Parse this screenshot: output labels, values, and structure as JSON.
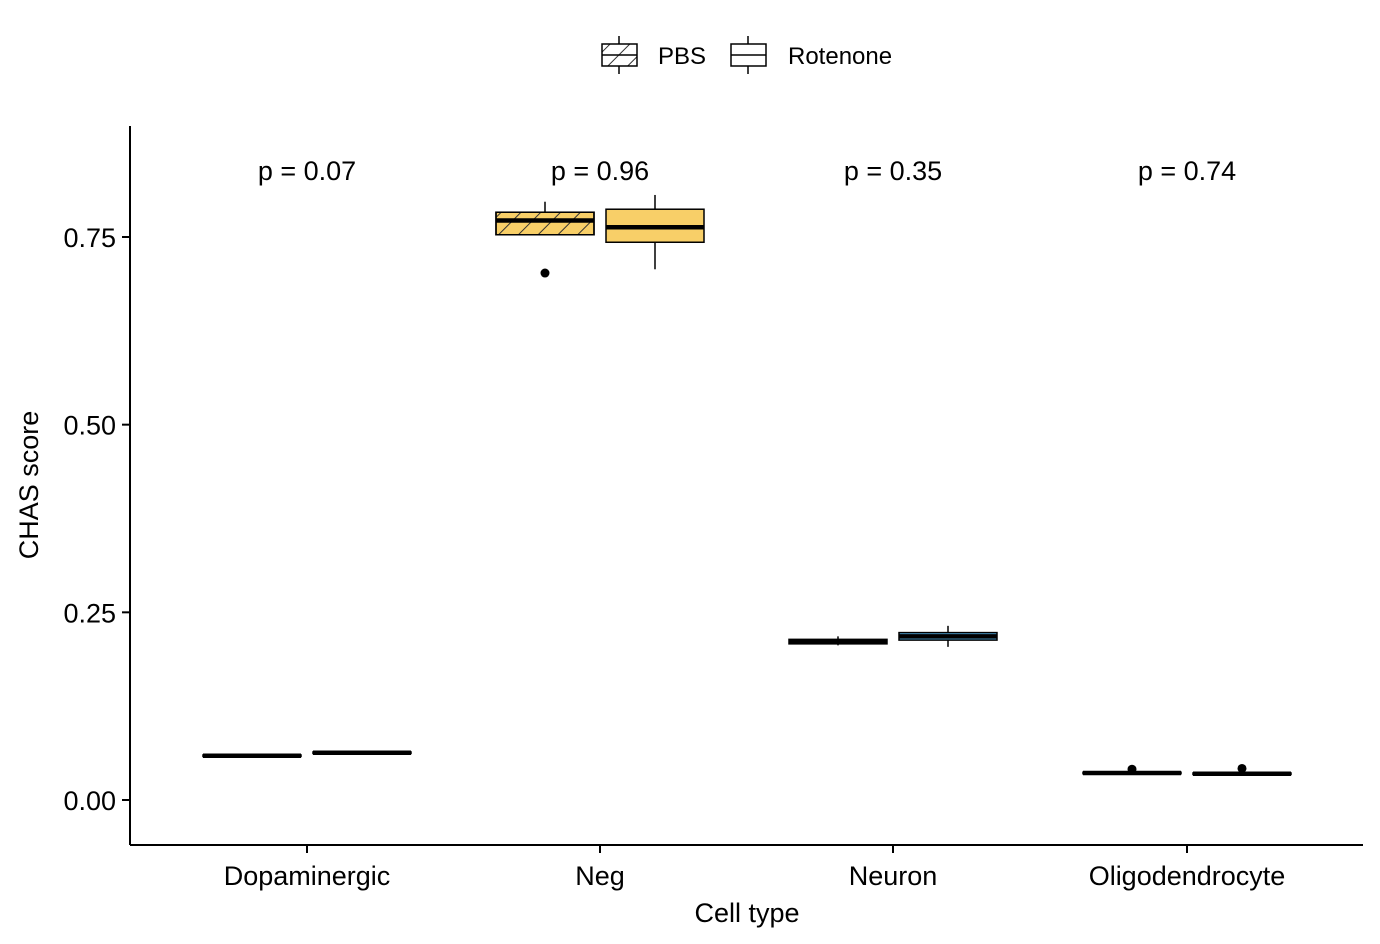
{
  "chart_data": {
    "type": "boxplot",
    "xlabel": "Cell type",
    "ylabel": "CHAS score",
    "categories": [
      "Dopaminergic",
      "Neg",
      "Neuron",
      "Oligodendrocyte"
    ],
    "ylim": [
      -0.06,
      0.89
    ],
    "yticks": [
      0.0,
      0.25,
      0.5,
      0.75
    ],
    "ytick_labels": [
      "0.00",
      "0.25",
      "0.50",
      "0.75"
    ],
    "legend": {
      "position": "top",
      "entries": [
        {
          "label": "PBS",
          "pattern": "hatched"
        },
        {
          "label": "Rotenone",
          "pattern": "none"
        }
      ]
    },
    "groups": [
      "PBS",
      "Rotenone"
    ],
    "p_values": [
      "p = 0.07",
      "p = 0.96",
      "p = 0.35",
      "p = 0.74"
    ],
    "boxes": [
      {
        "category": "Dopaminergic",
        "group": "PBS",
        "fill": "#6B2FA0",
        "whisker_low": 0.058,
        "q1": 0.058,
        "median": 0.059,
        "q3": 0.06,
        "whisker_high": 0.06,
        "outliers": []
      },
      {
        "category": "Dopaminergic",
        "group": "Rotenone",
        "fill": "#6B2FA0",
        "whisker_low": 0.062,
        "q1": 0.062,
        "median": 0.063,
        "q3": 0.064,
        "whisker_high": 0.064,
        "outliers": []
      },
      {
        "category": "Neg",
        "group": "PBS",
        "fill": "#F8CF68",
        "whisker_low": 0.752,
        "q1": 0.753,
        "median": 0.772,
        "q3": 0.783,
        "whisker_high": 0.797,
        "outliers": [
          0.702
        ]
      },
      {
        "category": "Neg",
        "group": "Rotenone",
        "fill": "#F8CF68",
        "whisker_low": 0.707,
        "q1": 0.743,
        "median": 0.763,
        "q3": 0.787,
        "whisker_high": 0.806,
        "outliers": []
      },
      {
        "category": "Neuron",
        "group": "PBS",
        "fill": "#56B4E9",
        "whisker_low": 0.206,
        "q1": 0.208,
        "median": 0.211,
        "q3": 0.214,
        "whisker_high": 0.218,
        "outliers": []
      },
      {
        "category": "Neuron",
        "group": "Rotenone",
        "fill": "#56B4E9",
        "whisker_low": 0.204,
        "q1": 0.213,
        "median": 0.218,
        "q3": 0.223,
        "whisker_high": 0.232,
        "outliers": []
      },
      {
        "category": "Oligodendrocyte",
        "group": "PBS",
        "fill": "#6B2FA0",
        "whisker_low": 0.035,
        "q1": 0.035,
        "median": 0.036,
        "q3": 0.037,
        "whisker_high": 0.037,
        "outliers": [
          0.041
        ]
      },
      {
        "category": "Oligodendrocyte",
        "group": "Rotenone",
        "fill": "#6B2FA0",
        "whisker_low": 0.034,
        "q1": 0.034,
        "median": 0.035,
        "q3": 0.036,
        "whisker_high": 0.036,
        "outliers": [
          0.042
        ]
      }
    ]
  }
}
